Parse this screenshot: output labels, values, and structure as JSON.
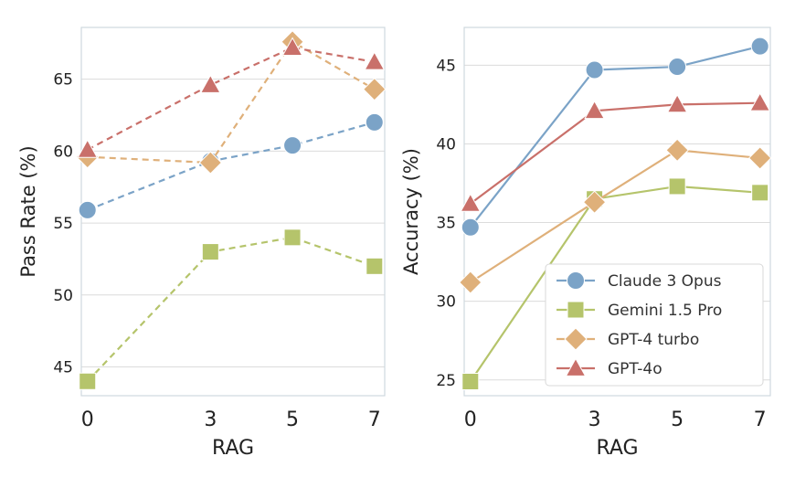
{
  "chart_data": [
    {
      "type": "line",
      "title": "",
      "xlabel": "RAG",
      "ylabel": "Pass Rate (%)",
      "x": [
        0,
        3,
        5,
        7
      ],
      "xlim": [
        -0.15,
        7.25
      ],
      "ylim": [
        43,
        68.6
      ],
      "yticks": [
        45,
        50,
        55,
        60,
        65
      ],
      "xticks": [
        0,
        3,
        5,
        7
      ],
      "line_style": "dashed",
      "series": [
        {
          "name": "Claude 3 Opus",
          "values": [
            55.9,
            59.3,
            60.4,
            62.0
          ]
        },
        {
          "name": "Gemini 1.5 Pro",
          "values": [
            44.0,
            53.0,
            54.0,
            52.0
          ]
        },
        {
          "name": "GPT-4 turbo",
          "values": [
            59.6,
            59.2,
            67.6,
            64.3
          ]
        },
        {
          "name": "GPT-4o",
          "values": [
            60.1,
            64.6,
            67.2,
            66.2
          ]
        }
      ]
    },
    {
      "type": "line",
      "title": "",
      "xlabel": "RAG",
      "ylabel": "Accuracy (%)",
      "x": [
        0,
        3,
        5,
        7
      ],
      "xlim": [
        -0.15,
        7.25
      ],
      "ylim": [
        24.0,
        47.4
      ],
      "yticks": [
        25,
        30,
        35,
        40,
        45
      ],
      "xticks": [
        0,
        3,
        5,
        7
      ],
      "line_style": "solid",
      "legend": "lower-right",
      "series": [
        {
          "name": "Claude 3 Opus",
          "values": [
            34.7,
            44.7,
            44.9,
            46.2
          ]
        },
        {
          "name": "Gemini 1.5 Pro",
          "values": [
            24.9,
            36.5,
            37.3,
            36.9
          ]
        },
        {
          "name": "GPT-4 turbo",
          "values": [
            31.2,
            36.3,
            39.6,
            39.1
          ]
        },
        {
          "name": "GPT-4o",
          "values": [
            36.2,
            42.1,
            42.5,
            42.6
          ]
        }
      ]
    }
  ],
  "series_styles": [
    {
      "name": "Claude 3 Opus",
      "color": "#7ba3c7",
      "marker": "circle"
    },
    {
      "name": "Gemini 1.5 Pro",
      "color": "#b5c46b",
      "marker": "square"
    },
    {
      "name": "GPT-4 turbo",
      "color": "#dfb07a",
      "marker": "diamond"
    },
    {
      "name": "GPT-4o",
      "color": "#c9706a",
      "marker": "triangle"
    }
  ]
}
